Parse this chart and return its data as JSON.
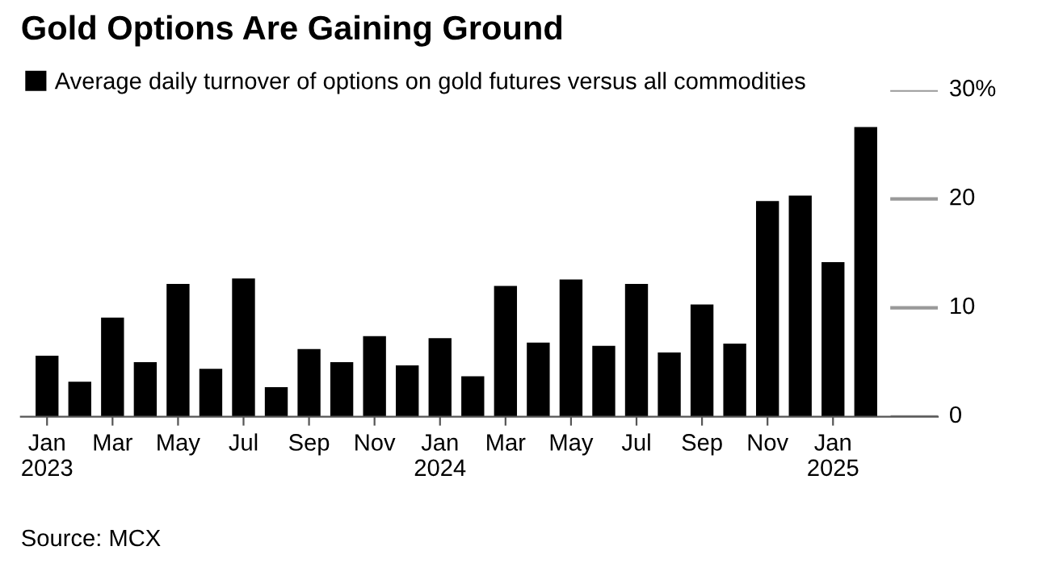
{
  "chart_data": {
    "type": "bar",
    "title": "Gold Options Are Gaining Ground",
    "categories": [
      "Jan\n2023",
      null,
      "Mar",
      null,
      "May",
      null,
      "Jul",
      null,
      "Sep",
      null,
      "Nov",
      null,
      "Jan\n2024",
      null,
      "Mar",
      null,
      "May",
      null,
      "Jul",
      null,
      "Sep",
      null,
      "Nov",
      null,
      "Jan\n2025",
      null
    ],
    "series": [
      {
        "name": "Average daily turnover of options on gold futures versus all commodities",
        "color": "#000000",
        "values": [
          5.6,
          3.2,
          9.1,
          5.0,
          12.2,
          4.4,
          12.7,
          2.7,
          6.2,
          5.0,
          7.4,
          4.7,
          7.2,
          3.7,
          12.0,
          6.8,
          12.6,
          6.5,
          12.2,
          5.9,
          10.3,
          6.7,
          19.8,
          20.3,
          14.2,
          26.6
        ]
      }
    ],
    "ylim": [
      0,
      30
    ],
    "yticks": [
      0,
      10,
      20,
      {
        "value": 30,
        "label": "30%"
      }
    ],
    "legend": "top left",
    "grid": false,
    "annotations": [
      "Source: MCX"
    ]
  }
}
